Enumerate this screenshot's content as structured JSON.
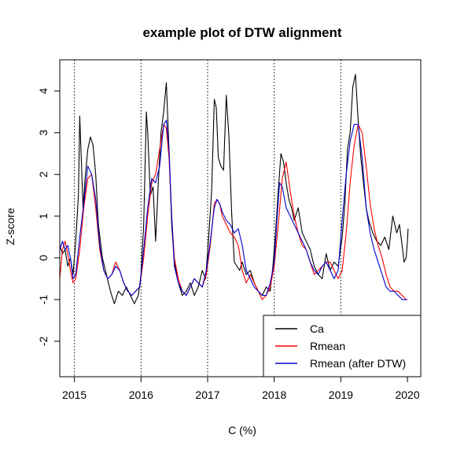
{
  "chart_data": {
    "type": "line",
    "title": "example plot of DTW alignment",
    "xlabel": "C (%)",
    "ylabel": "Z-score",
    "xlim": [
      2014.78,
      2020.2
    ],
    "ylim": [
      -2.85,
      4.75
    ],
    "xticks": [
      2015,
      2016,
      2017,
      2018,
      2019,
      2020
    ],
    "yticks": [
      -2,
      -1,
      0,
      1,
      2,
      3,
      4
    ],
    "vlines": [
      2015,
      2016,
      2017,
      2018,
      2019
    ],
    "legend_position": "bottom-right",
    "colors": {
      "Ca": "#000000",
      "Rmean": "#ff0000",
      "Rmean (after DTW)": "#0000cc"
    },
    "series": [
      {
        "name": "Ca",
        "x": [
          2014.78,
          2014.82,
          2014.86,
          2014.9,
          2014.94,
          2014.98,
          2015.02,
          2015.06,
          2015.08,
          2015.1,
          2015.13,
          2015.16,
          2015.2,
          2015.24,
          2015.28,
          2015.32,
          2015.36,
          2015.42,
          2015.48,
          2015.54,
          2015.6,
          2015.66,
          2015.72,
          2015.78,
          2015.84,
          2015.9,
          2015.96,
          2016.0,
          2016.04,
          2016.08,
          2016.1,
          2016.14,
          2016.18,
          2016.22,
          2016.26,
          2016.3,
          2016.34,
          2016.38,
          2016.42,
          2016.46,
          2016.5,
          2016.56,
          2016.62,
          2016.68,
          2016.74,
          2016.8,
          2016.86,
          2016.92,
          2016.97,
          2017.02,
          2017.06,
          2017.1,
          2017.13,
          2017.16,
          2017.2,
          2017.24,
          2017.28,
          2017.32,
          2017.36,
          2017.4,
          2017.44,
          2017.48,
          2017.52,
          2017.58,
          2017.64,
          2017.7,
          2017.76,
          2017.82,
          2017.88,
          2017.94,
          2017.98,
          2018.02,
          2018.06,
          2018.1,
          2018.14,
          2018.18,
          2018.22,
          2018.26,
          2018.3,
          2018.36,
          2018.42,
          2018.48,
          2018.54,
          2018.6,
          2018.66,
          2018.72,
          2018.78,
          2018.84,
          2018.9,
          2018.96,
          2019.02,
          2019.06,
          2019.1,
          2019.14,
          2019.18,
          2019.22,
          2019.26,
          2019.3,
          2019.34,
          2019.38,
          2019.42,
          2019.48,
          2019.54,
          2019.6,
          2019.66,
          2019.72,
          2019.78,
          2019.84,
          2019.88,
          2019.92,
          2019.95,
          2019.98,
          2020.0,
          2020.01
        ],
        "values": [
          0.3,
          0.1,
          0.2,
          -0.2,
          0.0,
          -0.4,
          0.4,
          1.5,
          3.4,
          2.5,
          1.2,
          1.9,
          2.6,
          2.9,
          2.7,
          2.0,
          0.8,
          0.0,
          -0.4,
          -0.8,
          -1.1,
          -0.8,
          -0.9,
          -0.7,
          -0.9,
          -1.1,
          -0.9,
          -0.4,
          0.8,
          3.5,
          3.0,
          1.5,
          1.7,
          0.4,
          1.8,
          3.0,
          3.5,
          4.2,
          2.6,
          0.8,
          -0.1,
          -0.6,
          -0.9,
          -0.8,
          -0.6,
          -0.9,
          -0.7,
          -0.3,
          -0.5,
          0.6,
          1.6,
          3.8,
          3.6,
          2.4,
          2.2,
          2.1,
          3.9,
          2.9,
          1.1,
          -0.1,
          -0.2,
          -0.3,
          -0.1,
          -0.4,
          -0.3,
          -0.6,
          -0.8,
          -0.9,
          -0.7,
          -0.8,
          -0.2,
          0.6,
          1.6,
          2.5,
          2.3,
          1.8,
          1.4,
          1.2,
          0.9,
          1.2,
          0.6,
          0.4,
          0.2,
          -0.2,
          -0.4,
          -0.5,
          0.1,
          -0.3,
          -0.1,
          -0.2,
          0.5,
          1.3,
          2.6,
          3.0,
          4.1,
          4.4,
          3.3,
          2.4,
          1.8,
          1.2,
          0.9,
          0.6,
          0.4,
          0.3,
          0.5,
          0.2,
          1.0,
          0.6,
          0.8,
          0.3,
          -0.1,
          0.0,
          0.4,
          0.7
        ]
      },
      {
        "name": "Rmean",
        "x": [
          2014.78,
          2014.82,
          2014.86,
          2014.9,
          2014.94,
          2014.98,
          2015.02,
          2015.08,
          2015.14,
          2015.2,
          2015.26,
          2015.32,
          2015.38,
          2015.44,
          2015.5,
          2015.56,
          2015.62,
          2015.68,
          2015.74,
          2015.8,
          2015.86,
          2015.92,
          2015.98,
          2016.04,
          2016.1,
          2016.16,
          2016.22,
          2016.28,
          2016.34,
          2016.38,
          2016.42,
          2016.46,
          2016.5,
          2016.56,
          2016.62,
          2016.68,
          2016.74,
          2016.8,
          2016.86,
          2016.92,
          2016.98,
          2017.04,
          2017.1,
          2017.14,
          2017.18,
          2017.22,
          2017.28,
          2017.34,
          2017.4,
          2017.46,
          2017.52,
          2017.58,
          2017.64,
          2017.7,
          2017.76,
          2017.82,
          2017.88,
          2017.94,
          2018.0,
          2018.06,
          2018.12,
          2018.18,
          2018.24,
          2018.3,
          2018.36,
          2018.42,
          2018.48,
          2018.54,
          2018.6,
          2018.66,
          2018.72,
          2018.78,
          2018.84,
          2018.9,
          2018.96,
          2019.02,
          2019.08,
          2019.14,
          2019.2,
          2019.26,
          2019.32,
          2019.38,
          2019.44,
          2019.5,
          2019.56,
          2019.62,
          2019.68,
          2019.74,
          2019.8,
          2019.86,
          2019.92,
          2019.98,
          2020.0
        ],
        "values": [
          -0.5,
          0.2,
          0.4,
          0.1,
          -0.3,
          -0.6,
          -0.5,
          0.2,
          1.2,
          1.9,
          2.0,
          1.2,
          0.2,
          -0.3,
          -0.5,
          -0.4,
          -0.1,
          -0.3,
          -0.6,
          -0.8,
          -0.9,
          -0.8,
          -0.7,
          0.0,
          1.0,
          1.8,
          2.0,
          2.6,
          3.2,
          3.1,
          2.4,
          1.0,
          0.0,
          -0.5,
          -0.8,
          -0.9,
          -0.7,
          -0.5,
          -0.6,
          -0.7,
          -0.4,
          0.3,
          1.3,
          1.4,
          1.3,
          1.0,
          0.8,
          0.6,
          0.5,
          0.3,
          -0.3,
          -0.6,
          -0.4,
          -0.6,
          -0.8,
          -1.0,
          -0.9,
          -0.7,
          -0.2,
          0.8,
          1.9,
          2.3,
          1.6,
          1.0,
          0.6,
          0.3,
          0.2,
          -0.1,
          -0.4,
          -0.3,
          -0.2,
          -0.1,
          -0.1,
          -0.3,
          -0.5,
          -0.3,
          0.6,
          1.8,
          2.7,
          3.2,
          3.0,
          2.2,
          1.3,
          0.7,
          0.3,
          0.0,
          -0.4,
          -0.7,
          -0.8,
          -0.8,
          -0.9,
          -1.0,
          -1.0
        ]
      },
      {
        "name": "Rmean (after DTW)",
        "x": [
          2014.78,
          2014.82,
          2014.86,
          2014.9,
          2014.94,
          2014.98,
          2015.02,
          2015.08,
          2015.14,
          2015.2,
          2015.26,
          2015.32,
          2015.38,
          2015.44,
          2015.5,
          2015.56,
          2015.62,
          2015.68,
          2015.74,
          2015.8,
          2015.86,
          2015.92,
          2015.98,
          2016.04,
          2016.1,
          2016.16,
          2016.22,
          2016.28,
          2016.34,
          2016.38,
          2016.42,
          2016.46,
          2016.5,
          2016.56,
          2016.62,
          2016.68,
          2016.74,
          2016.8,
          2016.86,
          2016.92,
          2016.98,
          2017.04,
          2017.1,
          2017.14,
          2017.18,
          2017.22,
          2017.28,
          2017.34,
          2017.4,
          2017.46,
          2017.52,
          2017.58,
          2017.64,
          2017.7,
          2017.76,
          2017.82,
          2017.88,
          2017.94,
          2018.0,
          2018.04,
          2018.08,
          2018.12,
          2018.18,
          2018.24,
          2018.3,
          2018.36,
          2018.42,
          2018.48,
          2018.54,
          2018.6,
          2018.66,
          2018.72,
          2018.78,
          2018.84,
          2018.9,
          2018.96,
          2019.02,
          2019.08,
          2019.14,
          2019.2,
          2019.26,
          2019.32,
          2019.38,
          2019.44,
          2019.5,
          2019.56,
          2019.62,
          2019.68,
          2019.74,
          2019.8,
          2019.86,
          2019.92,
          2019.98,
          2020.0
        ],
        "values": [
          0.2,
          0.4,
          0.2,
          0.3,
          0.0,
          -0.5,
          -0.4,
          0.5,
          1.3,
          2.2,
          2.0,
          1.4,
          0.3,
          -0.3,
          -0.5,
          -0.4,
          -0.2,
          -0.3,
          -0.6,
          -0.8,
          -0.9,
          -0.8,
          -0.7,
          0.2,
          1.2,
          1.9,
          1.8,
          2.2,
          3.2,
          3.3,
          2.6,
          1.0,
          -0.2,
          -0.6,
          -0.8,
          -0.9,
          -0.7,
          -0.5,
          -0.6,
          -0.7,
          -0.3,
          0.4,
          1.2,
          1.4,
          1.3,
          1.1,
          0.9,
          0.8,
          0.6,
          0.7,
          0.3,
          -0.3,
          -0.5,
          -0.7,
          -0.8,
          -0.9,
          -0.9,
          -0.6,
          -0.1,
          0.9,
          1.8,
          1.7,
          1.2,
          1.0,
          0.8,
          0.6,
          0.4,
          0.2,
          -0.1,
          -0.3,
          -0.4,
          -0.2,
          -0.1,
          -0.3,
          -0.5,
          -0.3,
          0.9,
          2.0,
          2.8,
          3.2,
          3.2,
          2.4,
          1.2,
          0.6,
          0.2,
          -0.1,
          -0.4,
          -0.7,
          -0.8,
          -0.8,
          -0.9,
          -1.0,
          -1.0,
          -1.0
        ]
      }
    ]
  }
}
